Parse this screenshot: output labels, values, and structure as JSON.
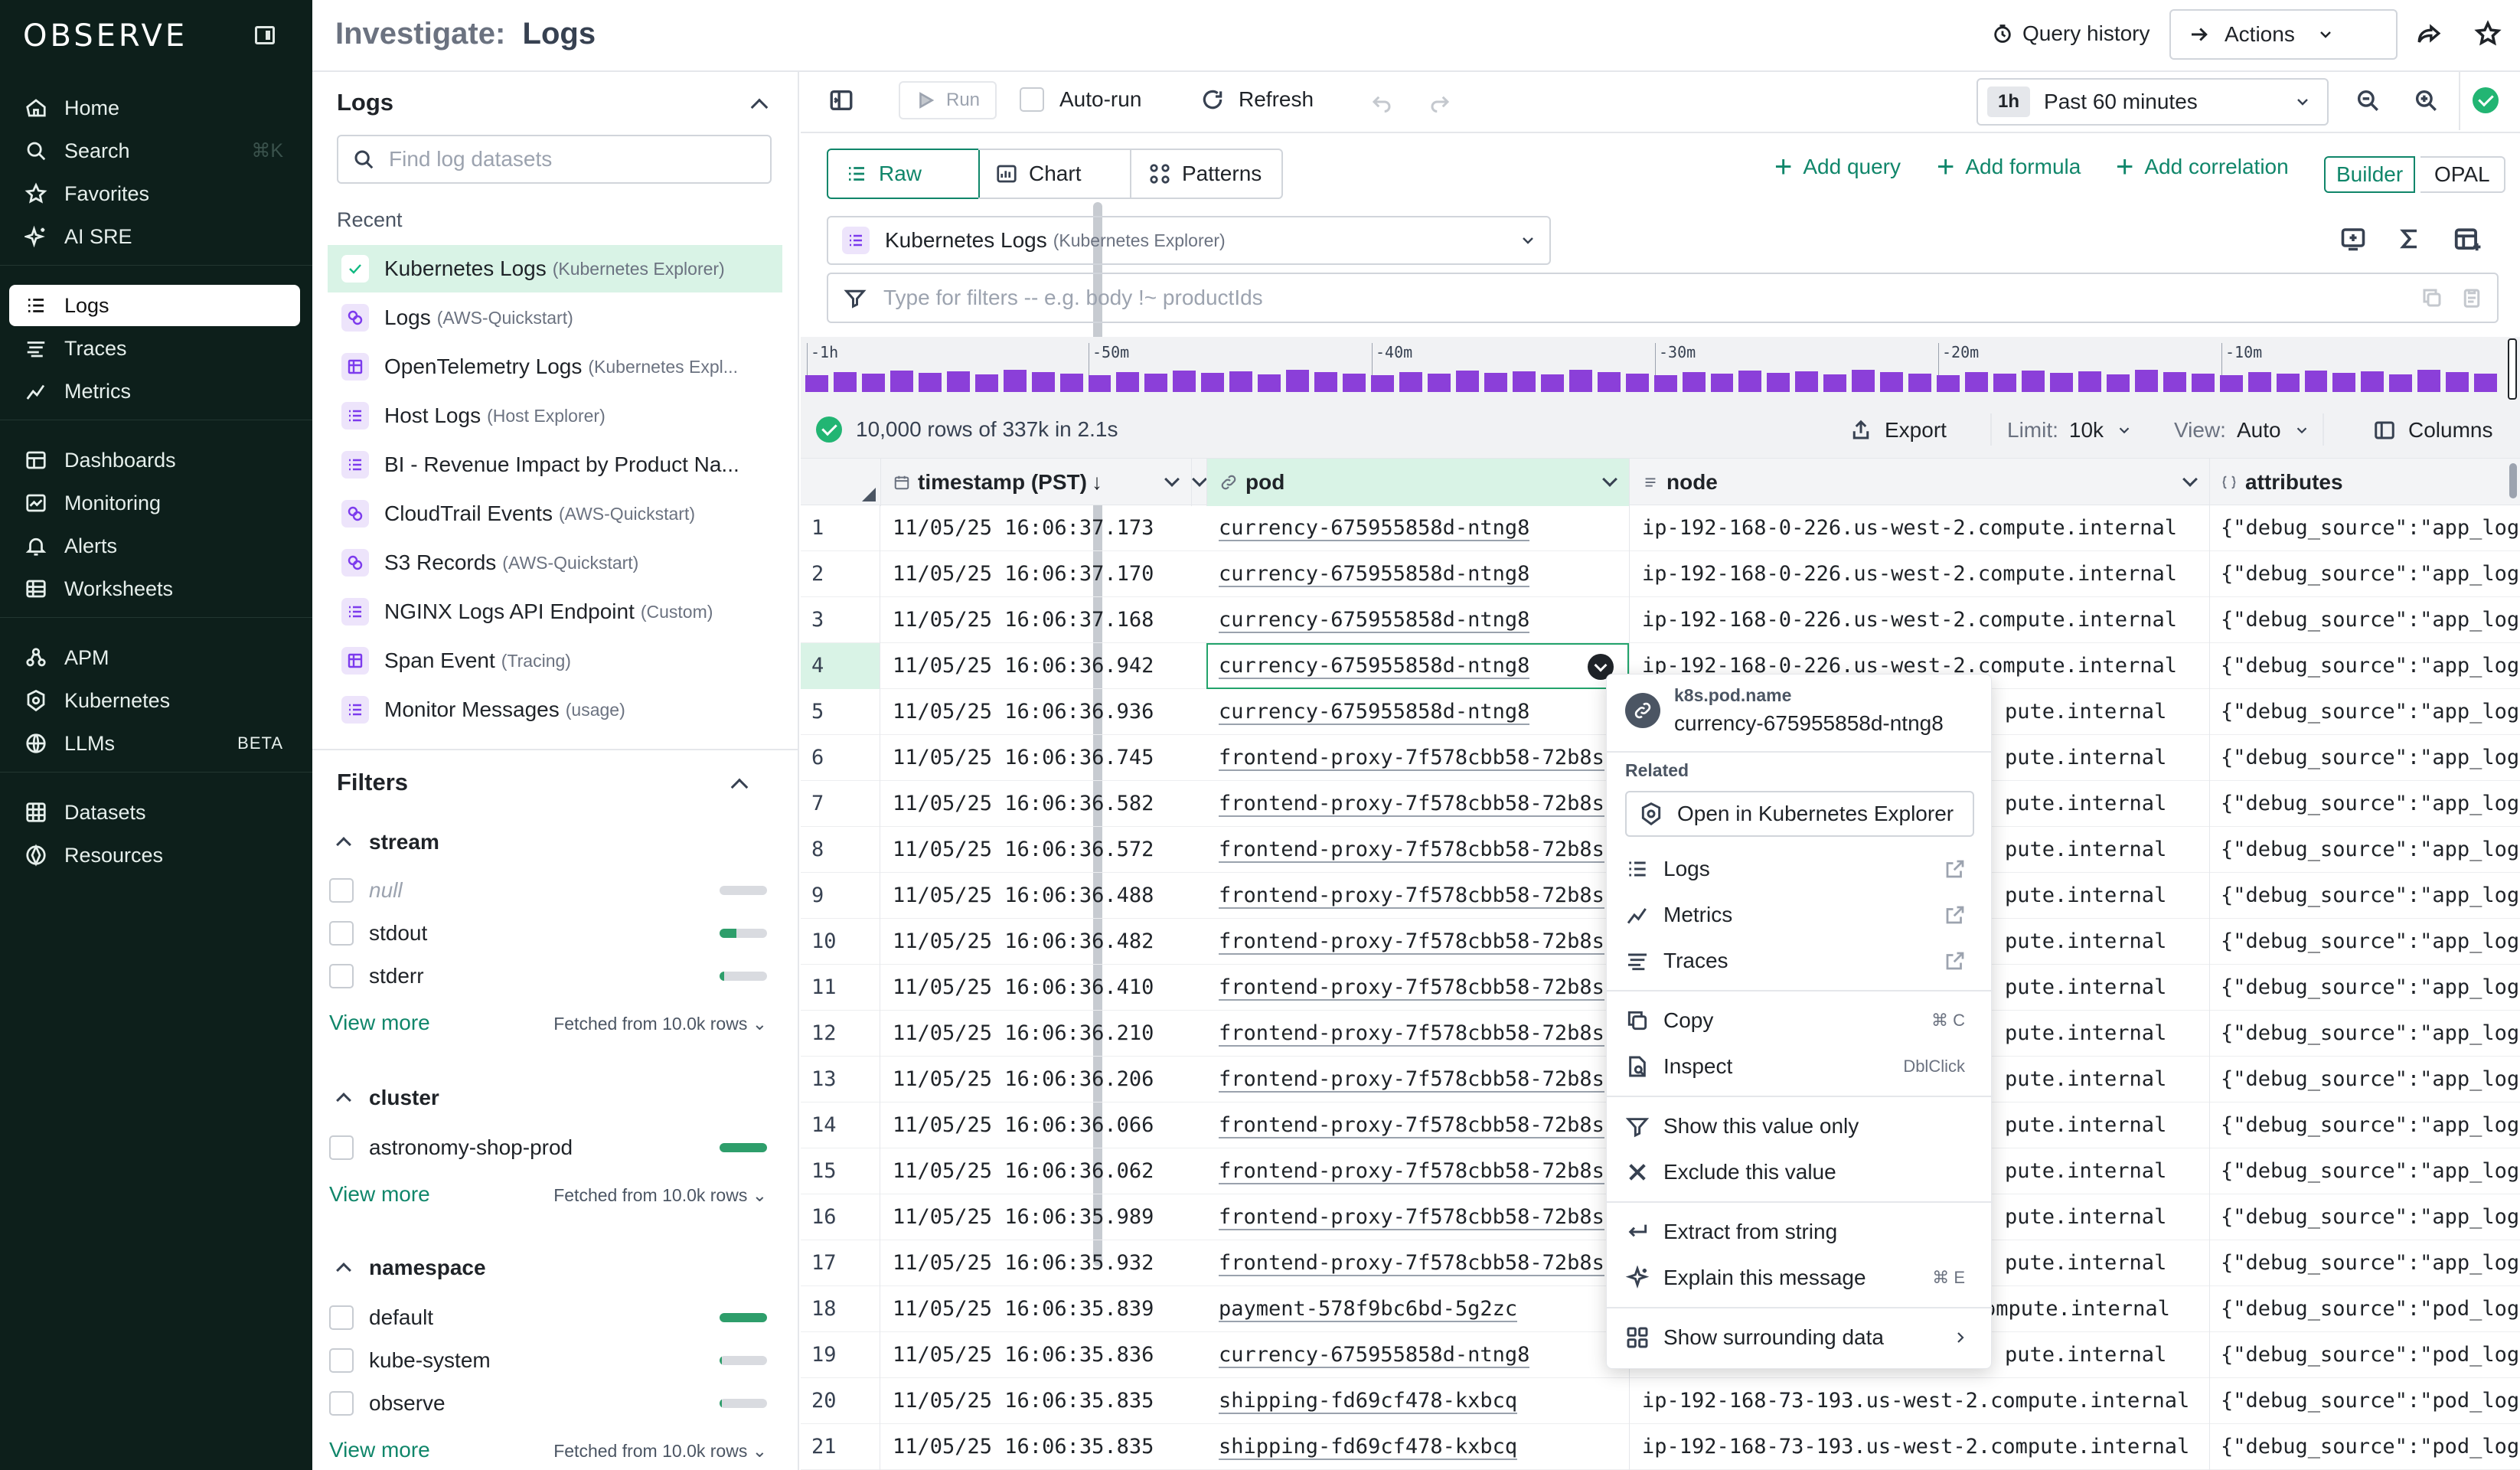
{
  "brand": {
    "logo_text": "OBSERVE"
  },
  "nav": {
    "items": [
      {
        "label": "Home",
        "icon": "home-icon"
      },
      {
        "label": "Search",
        "icon": "search-icon",
        "shortcut": "⌘K"
      },
      {
        "label": "Favorites",
        "icon": "star-icon"
      },
      {
        "label": "AI SRE",
        "icon": "sparkle-icon"
      },
      {
        "label": "Logs",
        "icon": "logs-icon",
        "active": true
      },
      {
        "label": "Traces",
        "icon": "traces-icon"
      },
      {
        "label": "Metrics",
        "icon": "metrics-icon"
      },
      {
        "label": "Dashboards",
        "icon": "dashboard-icon"
      },
      {
        "label": "Monitoring",
        "icon": "monitoring-icon"
      },
      {
        "label": "Alerts",
        "icon": "bell-icon"
      },
      {
        "label": "Worksheets",
        "icon": "worksheet-icon"
      },
      {
        "label": "APM",
        "icon": "apm-icon"
      },
      {
        "label": "Kubernetes",
        "icon": "kubernetes-icon"
      },
      {
        "label": "LLMs",
        "icon": "llm-icon",
        "badge": "BETA"
      },
      {
        "label": "Datasets",
        "icon": "datasets-icon"
      },
      {
        "label": "Resources",
        "icon": "resources-icon"
      }
    ]
  },
  "header": {
    "title_prefix": "Investigate:",
    "title": "Logs",
    "query_history": "Query history",
    "actions": "Actions"
  },
  "left_panel": {
    "logs_title": "Logs",
    "search_placeholder": "Find log datasets",
    "recent_label": "Recent",
    "datasets": [
      {
        "name": "Kubernetes Logs",
        "sub": "(Kubernetes Explorer)",
        "selected": true
      },
      {
        "name": "Logs",
        "sub": "(AWS-Quickstart)"
      },
      {
        "name": "OpenTelemetry Logs",
        "sub": "(Kubernetes Expl..."
      },
      {
        "name": "Host Logs",
        "sub": "(Host Explorer)"
      },
      {
        "name": "BI - Revenue Impact by Product Na...",
        "sub": ""
      },
      {
        "name": "CloudTrail Events",
        "sub": "(AWS-Quickstart)"
      },
      {
        "name": "S3 Records",
        "sub": "(AWS-Quickstart)"
      },
      {
        "name": "NGINX Logs API Endpoint",
        "sub": "(Custom)"
      },
      {
        "name": "Span Event",
        "sub": "(Tracing)"
      },
      {
        "name": "Monitor Messages",
        "sub": "(usage)"
      }
    ],
    "filters_title": "Filters",
    "view_more": "View more",
    "fetched": "Fetched from 10.0k rows",
    "groups": [
      {
        "name": "stream",
        "options": [
          {
            "label": "null",
            "italic": true,
            "fraction": 0.0
          },
          {
            "label": "stdout",
            "fraction": 0.35
          },
          {
            "label": "stderr",
            "fraction": 0.1
          }
        ]
      },
      {
        "name": "cluster",
        "options": [
          {
            "label": "astronomy-shop-prod",
            "fraction": 1.0
          }
        ]
      },
      {
        "name": "namespace",
        "options": [
          {
            "label": "default",
            "fraction": 1.0
          },
          {
            "label": "kube-system",
            "fraction": 0.05
          },
          {
            "label": "observe",
            "fraction": 0.05
          }
        ]
      }
    ]
  },
  "toolbar": {
    "run": "Run",
    "autorun": "Auto-run",
    "refresh": "Refresh",
    "time_badge": "1h",
    "time_range": "Past 60 minutes",
    "tabs": [
      "Raw",
      "Chart",
      "Patterns"
    ],
    "add_query": "Add query",
    "add_formula": "Add formula",
    "add_correlation": "Add correlation",
    "builder": "Builder",
    "opal": "OPAL",
    "dataset": "Kubernetes Logs",
    "dataset_sub": "(Kubernetes Explorer)",
    "filter_placeholder": "Type for filters -- e.g. body !~ productIds"
  },
  "histogram": {
    "ticks": [
      "-1h",
      "-50m",
      "-40m",
      "-30m",
      "-20m",
      "-10m"
    ],
    "bar_count": 60
  },
  "status": {
    "rows_text": "10,000 rows of 337k in 2.1s",
    "export": "Export",
    "limit_label": "Limit:",
    "limit_value": "10k",
    "view_label": "View:",
    "view_value": "Auto",
    "columns": "Columns"
  },
  "table": {
    "columns": [
      "timestamp (PST)",
      "pod",
      "node",
      "attributes"
    ],
    "rows": [
      {
        "n": "1",
        "ts": "11/05/25 16:06:37.173",
        "pod": "currency-675955858d-ntng8",
        "node": "ip-192-168-0-226.us-west-2.compute.internal",
        "attr": "{\"debug_source\":\"app_log"
      },
      {
        "n": "2",
        "ts": "11/05/25 16:06:37.170",
        "pod": "currency-675955858d-ntng8",
        "node": "ip-192-168-0-226.us-west-2.compute.internal",
        "attr": "{\"debug_source\":\"app_log"
      },
      {
        "n": "3",
        "ts": "11/05/25 16:06:37.168",
        "pod": "currency-675955858d-ntng8",
        "node": "ip-192-168-0-226.us-west-2.compute.internal",
        "attr": "{\"debug_source\":\"app_log"
      },
      {
        "n": "4",
        "ts": "11/05/25 16:06:36.942",
        "pod": "currency-675955858d-ntng8",
        "node": "ip-192-168-0-226.us-west-2.compute.internal",
        "attr": "{\"debug_source\":\"app_log"
      },
      {
        "n": "5",
        "ts": "11/05/25 16:06:36.936",
        "pod": "currency-675955858d-ntng8",
        "node": "pute.internal",
        "attr": "{\"debug_source\":\"app_log"
      },
      {
        "n": "6",
        "ts": "11/05/25 16:06:36.745",
        "pod": "frontend-proxy-7f578cbb58-72b8s",
        "node": "pute.internal",
        "attr": "{\"debug_source\":\"app_log"
      },
      {
        "n": "7",
        "ts": "11/05/25 16:06:36.582",
        "pod": "frontend-proxy-7f578cbb58-72b8s",
        "node": "pute.internal",
        "attr": "{\"debug_source\":\"app_log"
      },
      {
        "n": "8",
        "ts": "11/05/25 16:06:36.572",
        "pod": "frontend-proxy-7f578cbb58-72b8s",
        "node": "pute.internal",
        "attr": "{\"debug_source\":\"app_log"
      },
      {
        "n": "9",
        "ts": "11/05/25 16:06:36.488",
        "pod": "frontend-proxy-7f578cbb58-72b8s",
        "node": "pute.internal",
        "attr": "{\"debug_source\":\"app_log"
      },
      {
        "n": "10",
        "ts": "11/05/25 16:06:36.482",
        "pod": "frontend-proxy-7f578cbb58-72b8s",
        "node": "pute.internal",
        "attr": "{\"debug_source\":\"app_log"
      },
      {
        "n": "11",
        "ts": "11/05/25 16:06:36.410",
        "pod": "frontend-proxy-7f578cbb58-72b8s",
        "node": "pute.internal",
        "attr": "{\"debug_source\":\"app_log"
      },
      {
        "n": "12",
        "ts": "11/05/25 16:06:36.210",
        "pod": "frontend-proxy-7f578cbb58-72b8s",
        "node": "pute.internal",
        "attr": "{\"debug_source\":\"app_log"
      },
      {
        "n": "13",
        "ts": "11/05/25 16:06:36.206",
        "pod": "frontend-proxy-7f578cbb58-72b8s",
        "node": "pute.internal",
        "attr": "{\"debug_source\":\"app_log"
      },
      {
        "n": "14",
        "ts": "11/05/25 16:06:36.066",
        "pod": "frontend-proxy-7f578cbb58-72b8s",
        "node": "pute.internal",
        "attr": "{\"debug_source\":\"app_log"
      },
      {
        "n": "15",
        "ts": "11/05/25 16:06:36.062",
        "pod": "frontend-proxy-7f578cbb58-72b8s",
        "node": "pute.internal",
        "attr": "{\"debug_source\":\"app_log"
      },
      {
        "n": "16",
        "ts": "11/05/25 16:06:35.989",
        "pod": "frontend-proxy-7f578cbb58-72b8s",
        "node": "pute.internal",
        "attr": "{\"debug_source\":\"app_log"
      },
      {
        "n": "17",
        "ts": "11/05/25 16:06:35.932",
        "pod": "frontend-proxy-7f578cbb58-72b8s",
        "node": "pute.internal",
        "attr": "{\"debug_source\":\"app_log"
      },
      {
        "n": "18",
        "ts": "11/05/25 16:06:35.839",
        "pod": "payment-578f9bc6bd-5g2zc",
        "node": "ompute.internal",
        "attr": "{\"debug_source\":\"pod_log"
      },
      {
        "n": "19",
        "ts": "11/05/25 16:06:35.836",
        "pod": "currency-675955858d-ntng8",
        "node": "pute.internal",
        "attr": "{\"debug_source\":\"pod_log"
      },
      {
        "n": "20",
        "ts": "11/05/25 16:06:35.835",
        "pod": "shipping-fd69cf478-kxbcq",
        "node": "ip-192-168-73-193.us-west-2.compute.internal",
        "attr": "{\"debug_source\":\"pod_log"
      },
      {
        "n": "21",
        "ts": "11/05/25 16:06:35.835",
        "pod": "shipping-fd69cf478-kxbcq",
        "node": "ip-192-168-73-193.us-west-2.compute.internal",
        "attr": "{\"debug_source\":\"pod_log"
      }
    ]
  },
  "context_menu": {
    "field": "k8s.pod.name",
    "value": "currency-675955858d-ntng8",
    "related_label": "Related",
    "open_in": "Open in Kubernetes Explorer",
    "logs": "Logs",
    "metrics": "Metrics",
    "traces": "Traces",
    "copy": "Copy",
    "copy_shortcut": "⌘ C",
    "inspect": "Inspect",
    "inspect_shortcut": "DblClick",
    "show_only": "Show this value only",
    "exclude": "Exclude this value",
    "extract": "Extract from string",
    "explain": "Explain this message",
    "explain_shortcut": "⌘ E",
    "surrounding": "Show surrounding data"
  },
  "colors": {
    "nav_bg": "#0d1f1b",
    "accent": "#10866a",
    "histogram": "#8b3fd9",
    "selected_bg": "#d9f3e6"
  }
}
